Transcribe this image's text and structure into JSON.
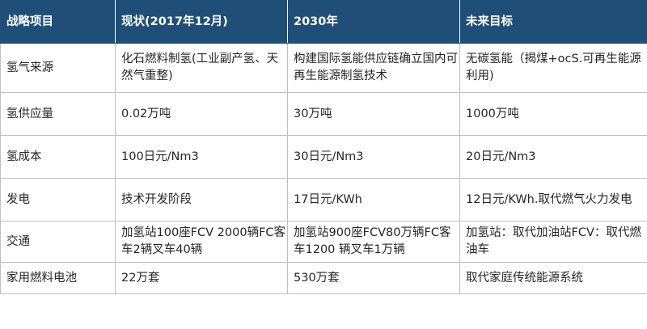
{
  "table": {
    "headers": [
      "战略项目",
      "现状(2017年12月)",
      "2030年",
      "未来目标"
    ],
    "rows": [
      [
        "氢气来源",
        "化石燃料制氢(工业副产氢、天然气重整)",
        "构建国际氢能供应链确立国内可再生能源制氢技术",
        "无碳氢能（揭煤+ocS.可再生能源利用)"
      ],
      [
        "氢供应量",
        "0.02万吨",
        "30万吨",
        "1000万吨"
      ],
      [
        "氢成本",
        "100日元/Nm3",
        "30日元/Nm3",
        "20日元/Nm3"
      ],
      [
        "发电",
        "技术开发阶段",
        "17日元/KWh",
        "12日元/KWh.取代燃气火力发电"
      ],
      [
        "交通",
        "加氢站100座FCV 2000辆FC客车2辆叉车40辆",
        "加氢站900座FCV80万辆FC客车1200 辆叉车1万辆",
        "加氢站：取代加油站FCV：取代燃油车"
      ],
      [
        "家用燃料电池",
        "22万套",
        "530万套",
        "取代家庭传统能源系统"
      ]
    ]
  },
  "colors": {
    "header_background": "#1f4e79",
    "header_text": "#ffffff",
    "grid_line": "#bfbfbf",
    "body_text": "#262626"
  }
}
